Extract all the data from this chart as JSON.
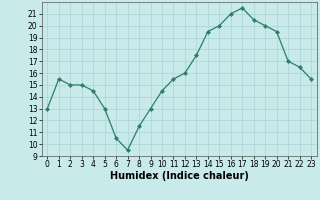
{
  "x": [
    0,
    1,
    2,
    3,
    4,
    5,
    6,
    7,
    8,
    9,
    10,
    11,
    12,
    13,
    14,
    15,
    16,
    17,
    18,
    19,
    20,
    21,
    22,
    23
  ],
  "y": [
    13,
    15.5,
    15,
    15,
    14.5,
    13,
    10.5,
    9.5,
    11.5,
    13,
    14.5,
    15.5,
    16,
    17.5,
    19.5,
    20,
    21,
    21.5,
    20.5,
    20,
    19.5,
    17,
    16.5,
    15.5
  ],
  "line_color": "#2e7d6e",
  "marker": "D",
  "marker_size": 2,
  "bg_color": "#c8eaea",
  "grid_color": "#b0d8d8",
  "xlabel": "Humidex (Indice chaleur)",
  "ylim": [
    9,
    22
  ],
  "xlim": [
    -0.5,
    23.5
  ],
  "yticks": [
    9,
    10,
    11,
    12,
    13,
    14,
    15,
    16,
    17,
    18,
    19,
    20,
    21
  ],
  "xticks": [
    0,
    1,
    2,
    3,
    4,
    5,
    6,
    7,
    8,
    9,
    10,
    11,
    12,
    13,
    14,
    15,
    16,
    17,
    18,
    19,
    20,
    21,
    22,
    23
  ],
  "tick_fontsize": 5.5,
  "xlabel_fontsize": 7,
  "linewidth": 0.9
}
